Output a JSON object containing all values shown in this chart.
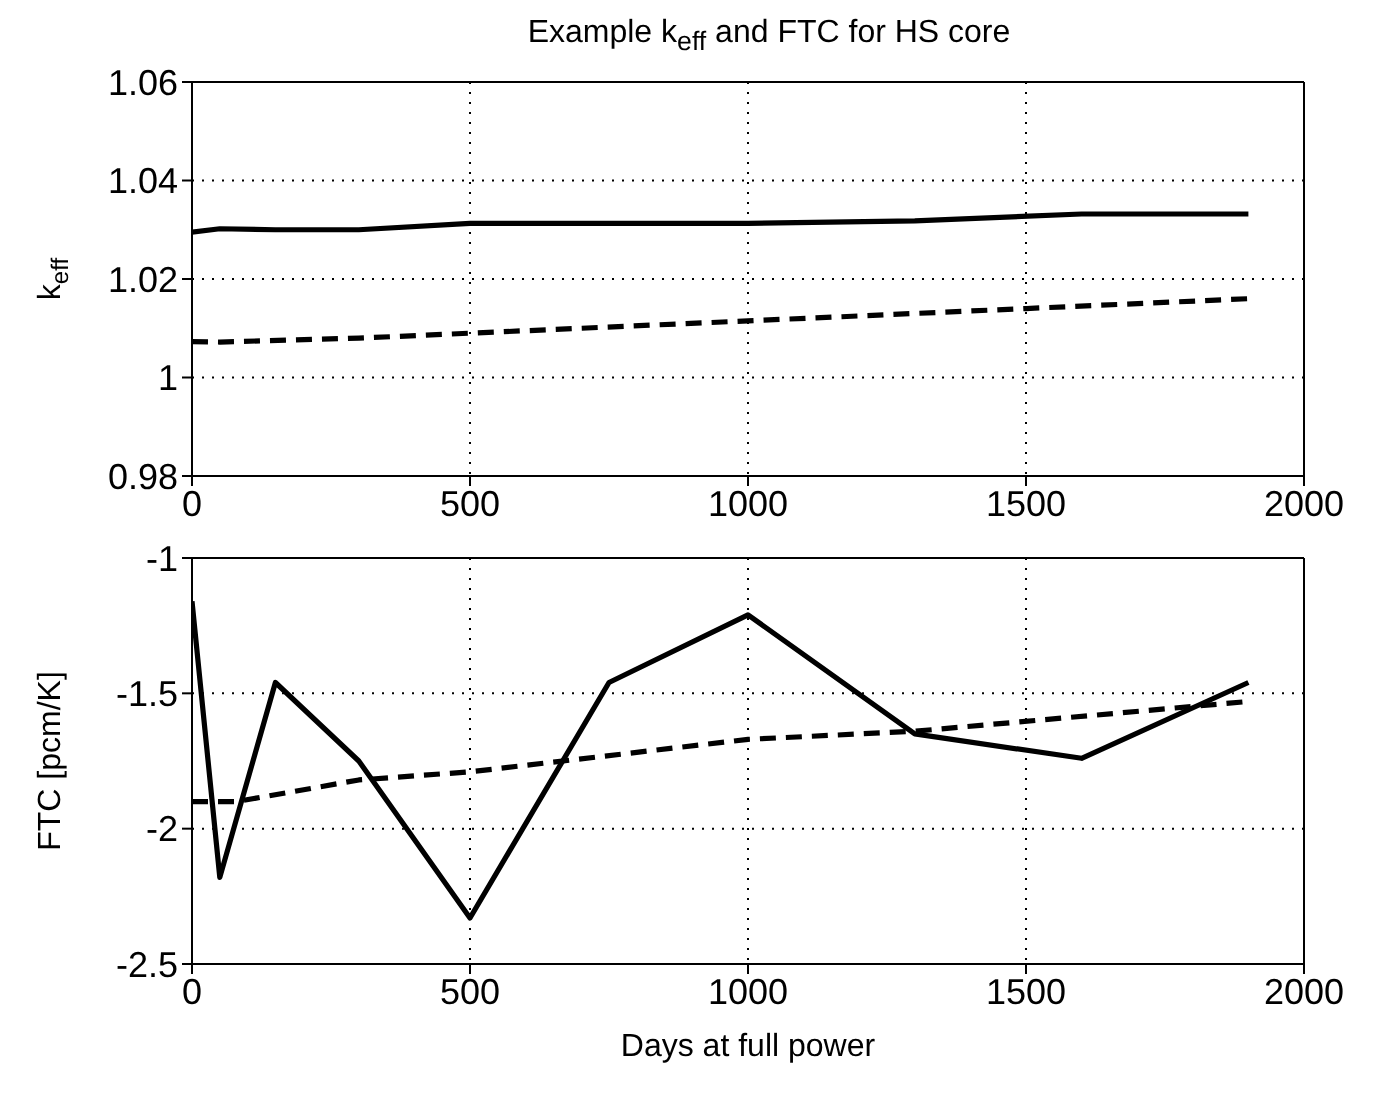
{
  "chart_data": [
    {
      "type": "line",
      "title": "Example k$_{eff}$ and FTC for HS core",
      "ylabel": "k$_{eff}$",
      "xlim": [
        0,
        2000
      ],
      "xticks": [
        0,
        500,
        1000,
        1500,
        2000
      ],
      "ylim": [
        0.98,
        1.06
      ],
      "yticks": [
        0.98,
        1,
        1.02,
        1.04,
        1.06
      ],
      "grid": true,
      "marker": "none",
      "series": [
        {
          "color": "#000000",
          "line_style": "solid",
          "x": [
            0,
            50,
            150,
            300,
            500,
            1000,
            1300,
            1600,
            1900
          ],
          "values": [
            1.0295,
            1.0302,
            1.03,
            1.03,
            1.0313,
            1.0313,
            1.0318,
            1.0332,
            1.0332
          ]
        },
        {
          "color": "#000000",
          "line_style": "dashed",
          "x": [
            0,
            50,
            300,
            500,
            1000,
            1500,
            1900
          ],
          "values": [
            1.0073,
            1.0072,
            1.008,
            1.009,
            1.0115,
            1.014,
            1.016
          ]
        }
      ]
    },
    {
      "type": "line",
      "ylabel": "FTC [pcm/K]",
      "xlabel": "Days at full power",
      "xlim": [
        0,
        2000
      ],
      "xticks": [
        0,
        500,
        1000,
        1500,
        2000
      ],
      "ylim": [
        -2.5,
        -1
      ],
      "yticks": [
        -2.5,
        -2,
        -1.5,
        -1
      ],
      "grid": true,
      "marker": "none",
      "series": [
        {
          "color": "#000000",
          "line_style": "solid",
          "x": [
            0,
            50,
            150,
            300,
            500,
            750,
            1000,
            1300,
            1600,
            1900
          ],
          "values": [
            -1.16,
            -2.18,
            -1.46,
            -1.75,
            -2.33,
            -1.46,
            -1.21,
            -1.65,
            -1.74,
            -1.46
          ]
        },
        {
          "color": "#000000",
          "line_style": "dashed",
          "x": [
            0,
            80,
            300,
            500,
            1000,
            1300,
            1900
          ],
          "values": [
            -1.9,
            -1.9,
            -1.82,
            -1.79,
            -1.67,
            -1.64,
            -1.53
          ]
        }
      ]
    }
  ]
}
